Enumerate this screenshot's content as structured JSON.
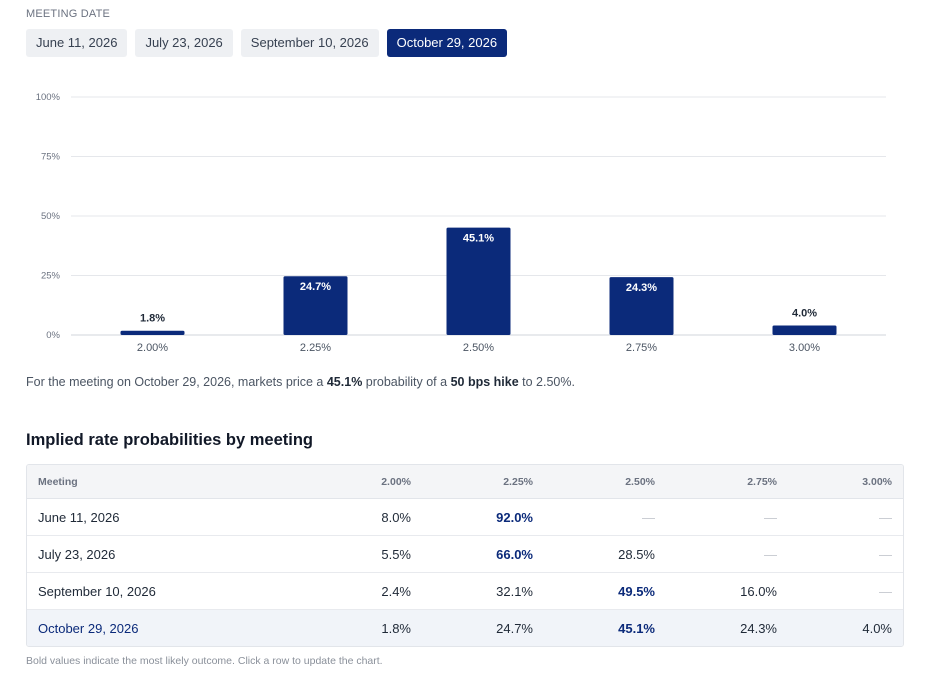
{
  "meeting_date_label": "MEETING DATE",
  "tabs": [
    {
      "label": "June 11, 2026",
      "active": false
    },
    {
      "label": "July 23, 2026",
      "active": false
    },
    {
      "label": "September 10, 2026",
      "active": false
    },
    {
      "label": "October 29, 2026",
      "active": true
    }
  ],
  "colors": {
    "accent": "#0b2a7a",
    "grid": "#e5e7eb",
    "axis_text": "#6b7280"
  },
  "chart_data": {
    "type": "bar",
    "categories": [
      "2.00%",
      "2.25%",
      "2.50%",
      "2.75%",
      "3.00%"
    ],
    "values": [
      1.8,
      24.7,
      45.1,
      24.3,
      4.0
    ],
    "value_labels": [
      "1.8%",
      "24.7%",
      "45.1%",
      "24.3%",
      "4.0%"
    ],
    "y_ticks": [
      "0%",
      "25%",
      "50%",
      "75%",
      "100%"
    ],
    "y_tick_values": [
      0,
      25,
      50,
      75,
      100
    ],
    "ylim": [
      0,
      100
    ],
    "grid": true
  },
  "summary": {
    "prefix": "For the meeting on October 29, 2026, markets price a ",
    "probability": "45.1%",
    "middle": " probability of a ",
    "move": "50 bps hike",
    "suffix": " to 2.50%."
  },
  "table": {
    "title": "Implied rate probabilities by meeting",
    "headers": [
      "Meeting",
      "2.00%",
      "2.25%",
      "2.50%",
      "2.75%",
      "3.00%"
    ],
    "rows": [
      {
        "meeting": "June 11, 2026",
        "cells": [
          "8.0%",
          "92.0%",
          "—",
          "—",
          "—"
        ],
        "max_index": 1,
        "selected": false
      },
      {
        "meeting": "July 23, 2026",
        "cells": [
          "5.5%",
          "66.0%",
          "28.5%",
          "—",
          "—"
        ],
        "max_index": 1,
        "selected": false
      },
      {
        "meeting": "September 10, 2026",
        "cells": [
          "2.4%",
          "32.1%",
          "49.5%",
          "16.0%",
          "—"
        ],
        "max_index": 2,
        "selected": false
      },
      {
        "meeting": "October 29, 2026",
        "cells": [
          "1.8%",
          "24.7%",
          "45.1%",
          "24.3%",
          "4.0%"
        ],
        "max_index": 2,
        "selected": true
      }
    ]
  },
  "footnote": "Bold values indicate the most likely outcome. Click a row to update the chart."
}
